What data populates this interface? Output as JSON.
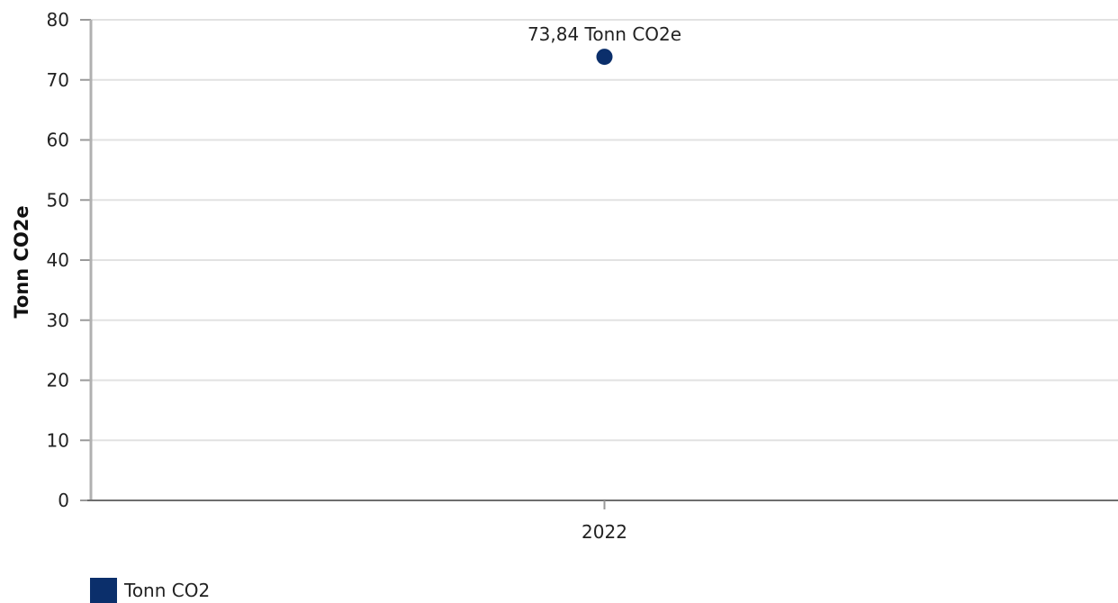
{
  "chart_data": {
    "type": "scatter",
    "categories": [
      "2022"
    ],
    "series": [
      {
        "name": "Tonn CO2",
        "values": [
          73.84
        ],
        "color": "#0b2f6b"
      }
    ],
    "data_labels": [
      "73,84 Tonn CO2e"
    ],
    "xlabel": "",
    "ylabel": "Tonn CO2e",
    "ylim": [
      0,
      80
    ],
    "yticks": [
      "0",
      "10",
      "20",
      "30",
      "40",
      "50",
      "60",
      "70",
      "80"
    ],
    "grid": true,
    "legend_position": "bottom-left"
  },
  "legend": {
    "label": "Tonn CO2",
    "color": "#0b2f6b"
  }
}
